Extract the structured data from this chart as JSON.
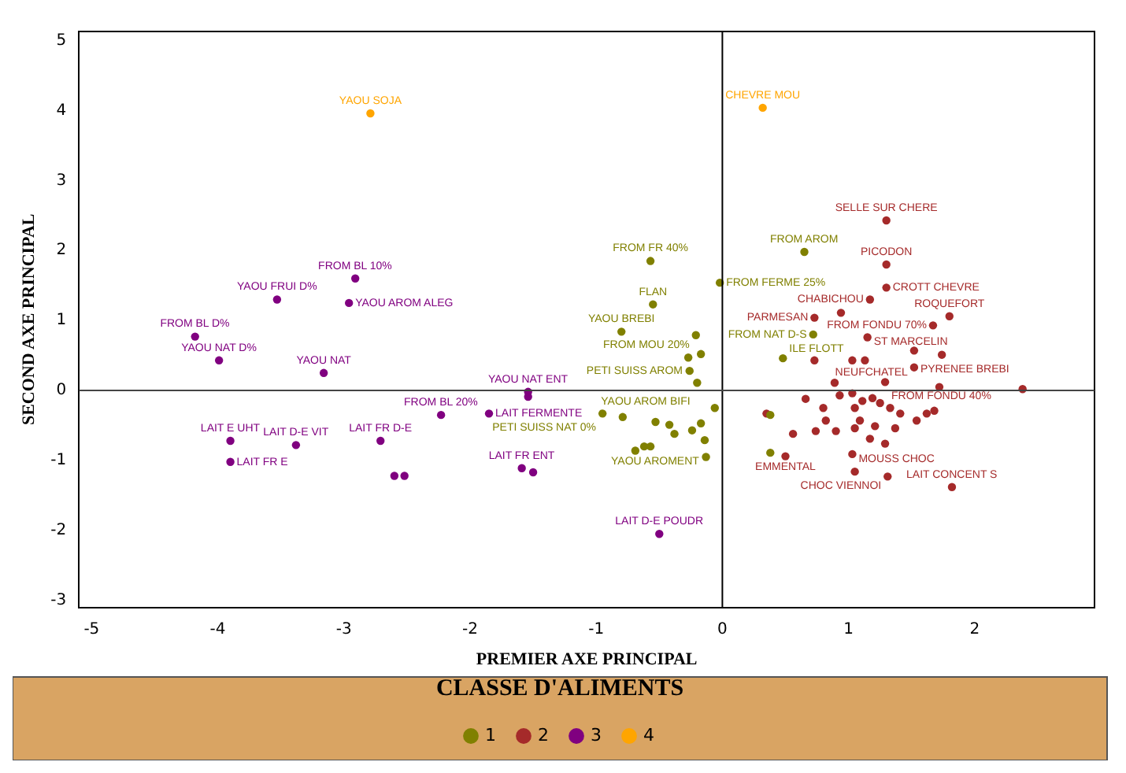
{
  "chart_data": {
    "type": "scatter",
    "xlabel": "PREMIER AXE PRINCIPAL",
    "ylabel": "SECOND AXE PRINCIPAL",
    "legend_title": "CLASSE D'ALIMENTS",
    "legend": "bottom",
    "marker": "circle",
    "grid": false,
    "xlim": [
      -5.1,
      2.95
    ],
    "xticks": [
      -5,
      -4,
      -3,
      -2,
      -1,
      0,
      1,
      2
    ],
    "ylim": [
      -3.1,
      5.13
    ],
    "yticks": [
      -3,
      -2,
      -1,
      0,
      1,
      2,
      3,
      4,
      5
    ],
    "ref_lines": [
      {
        "axis": "x",
        "value": 0,
        "color": "#000000"
      },
      {
        "axis": "y",
        "value": 0,
        "color": "#444444"
      }
    ],
    "series": [
      {
        "name": "1",
        "color": "#808000",
        "x": [
          -0.57,
          -0.02,
          0.65,
          -0.55,
          -0.8,
          -0.21,
          0.72,
          0.48,
          -0.17,
          -0.27,
          -0.26,
          -0.2,
          -0.95,
          -0.79,
          -0.53,
          -0.42,
          -0.17,
          -0.06,
          -0.38,
          -0.24,
          -0.14,
          -0.62,
          -0.57,
          -0.69,
          -0.13,
          0.38,
          0.38
        ],
        "values": [
          1.85,
          1.54,
          1.98,
          1.23,
          0.84,
          0.79,
          0.8,
          0.46,
          0.52,
          0.47,
          0.28,
          0.11,
          -0.33,
          -0.38,
          -0.45,
          -0.49,
          -0.47,
          -0.25,
          -0.62,
          -0.57,
          -0.71,
          -0.8,
          -0.8,
          -0.86,
          -0.95,
          -0.35,
          -0.89
        ]
      },
      {
        "name": "2",
        "color": "#a52a2a",
        "x": [
          1.3,
          1.3,
          1.3,
          1.17,
          0.94,
          0.73,
          1.8,
          1.67,
          1.15,
          1.52,
          1.74,
          1.52,
          0.73,
          1.03,
          1.13,
          2.38,
          1.72,
          0.89,
          1.29,
          0.66,
          0.8,
          0.93,
          1.03,
          1.11,
          1.19,
          1.25,
          1.05,
          1.33,
          1.41,
          1.54,
          1.62,
          1.68,
          1.09,
          1.21,
          1.37,
          1.17,
          1.29,
          1.05,
          0.9,
          0.82,
          0.74,
          0.56,
          0.35,
          0.5,
          1.03,
          1.05,
          1.31,
          1.82
        ],
        "values": [
          2.43,
          1.8,
          1.47,
          1.3,
          1.11,
          1.04,
          1.06,
          0.93,
          0.76,
          0.57,
          0.51,
          0.33,
          0.43,
          0.43,
          0.43,
          0.02,
          0.05,
          0.11,
          0.12,
          -0.12,
          -0.25,
          -0.07,
          -0.04,
          -0.15,
          -0.11,
          -0.18,
          -0.25,
          -0.25,
          -0.33,
          -0.43,
          -0.33,
          -0.29,
          -0.43,
          -0.51,
          -0.54,
          -0.69,
          -0.76,
          -0.54,
          -0.58,
          -0.43,
          -0.58,
          -0.62,
          -0.33,
          -0.94,
          -0.91,
          -1.16,
          -1.23,
          -1.38
        ]
      },
      {
        "name": "3",
        "color": "#800080",
        "x": [
          -2.91,
          -3.53,
          -2.96,
          -4.18,
          -3.99,
          -3.16,
          -1.54,
          -1.54,
          -2.23,
          -1.85,
          -3.9,
          -3.9,
          -3.38,
          -2.71,
          -2.6,
          -2.52,
          -1.59,
          -1.5,
          -0.5
        ],
        "values": [
          1.6,
          1.3,
          1.25,
          0.77,
          0.43,
          0.25,
          -0.02,
          -0.09,
          -0.35,
          -0.33,
          -0.72,
          -1.02,
          -0.78,
          -0.72,
          -1.22,
          -1.22,
          -1.11,
          -1.17,
          -2.05
        ]
      },
      {
        "name": "4",
        "color": "#ffa500",
        "x": [
          -2.79,
          0.32
        ],
        "values": [
          3.96,
          4.04
        ]
      }
    ],
    "annotations": [
      {
        "text": "YAOU SOJA",
        "x": -2.79,
        "y": 3.96
      },
      {
        "text": "CHEVRE MOU",
        "x": 0.32,
        "y": 4.04
      },
      {
        "text": "FROM BL 10%",
        "x": -2.91,
        "y": 1.6
      },
      {
        "text": "YAOU FRUI D%",
        "x": -3.53,
        "y": 1.3
      },
      {
        "text": "YAOU AROM ALEG",
        "x": -2.96,
        "y": 1.25
      },
      {
        "text": "FROM BL D%",
        "x": -4.18,
        "y": 0.77
      },
      {
        "text": "YAOU NAT D%",
        "x": -3.99,
        "y": 0.43
      },
      {
        "text": "YAOU NAT",
        "x": -3.16,
        "y": 0.25
      },
      {
        "text": "YAOU NAT ENT",
        "x": -1.54,
        "y": -0.09
      },
      {
        "text": "FROM BL 20%",
        "x": -2.23,
        "y": -0.35
      },
      {
        "text": "LAIT FERMENTE",
        "x": -1.85,
        "y": -0.33
      },
      {
        "text": "LAIT E UHT",
        "x": -3.9,
        "y": -0.72
      },
      {
        "text": "LAIT FR E",
        "x": -3.9,
        "y": -1.02
      },
      {
        "text": "LAIT D-E VIT",
        "x": -3.38,
        "y": -0.78
      },
      {
        "text": "LAIT FR D-E",
        "x": -2.71,
        "y": -0.72
      },
      {
        "text": "LAIT FR ENT",
        "x": -1.59,
        "y": -1.11
      },
      {
        "text": "LAIT D-E POUDR",
        "x": -0.5,
        "y": -2.05
      },
      {
        "text": "FROM FR 40%",
        "x": -0.57,
        "y": 1.85
      },
      {
        "text": "FROM FERME 25%",
        "x": -0.02,
        "y": 1.54
      },
      {
        "text": "FROM AROM",
        "x": 0.65,
        "y": 1.98
      },
      {
        "text": "FLAN",
        "x": -0.55,
        "y": 1.23
      },
      {
        "text": "YAOU BREBI",
        "x": -0.8,
        "y": 0.84
      },
      {
        "text": "FROM MOU 20%",
        "x": -0.21,
        "y": 0.79
      },
      {
        "text": "FROM NAT D-S",
        "x": 0.72,
        "y": 0.8
      },
      {
        "text": "ILE FLOTT",
        "x": 0.48,
        "y": 0.46
      },
      {
        "text": "PETI SUISS AROM",
        "x": -0.26,
        "y": 0.28
      },
      {
        "text": "YAOU AROM BIFI",
        "x": -0.2,
        "y": 0.11
      },
      {
        "text": "PETI SUISS NAT 0%",
        "x": -0.95,
        "y": -0.33
      },
      {
        "text": "YAOU AROMENT",
        "x": -0.13,
        "y": -0.95
      },
      {
        "text": "SELLE SUR CHERE",
        "x": 1.3,
        "y": 2.43
      },
      {
        "text": "PICODON",
        "x": 1.3,
        "y": 1.8
      },
      {
        "text": "CROTT CHEVRE",
        "x": 1.3,
        "y": 1.47
      },
      {
        "text": "CHABICHOU",
        "x": 1.17,
        "y": 1.3
      },
      {
        "text": "PARMESAN",
        "x": 0.73,
        "y": 1.04
      },
      {
        "text": "ROQUEFORT",
        "x": 1.8,
        "y": 1.06
      },
      {
        "text": "FROM FONDU 70%",
        "x": 1.67,
        "y": 0.93
      },
      {
        "text": "ST MARCELIN",
        "x": 1.15,
        "y": 0.76
      },
      {
        "text": "PYRENEE BREBI",
        "x": 1.52,
        "y": 0.57
      },
      {
        "text": "NEUFCHATEL",
        "x": 1.52,
        "y": 0.33
      },
      {
        "text": "FROM FONDU 40%",
        "x": 1.29,
        "y": 0.12
      },
      {
        "text": "EMMENTAL",
        "x": 0.5,
        "y": -0.94
      },
      {
        "text": "MOUSS CHOC",
        "x": 1.03,
        "y": -0.91
      },
      {
        "text": "CHOC VIENNOI",
        "x": 1.31,
        "y": -1.23
      },
      {
        "text": "LAIT CONCENT S",
        "x": 1.82,
        "y": -1.38
      }
    ]
  }
}
